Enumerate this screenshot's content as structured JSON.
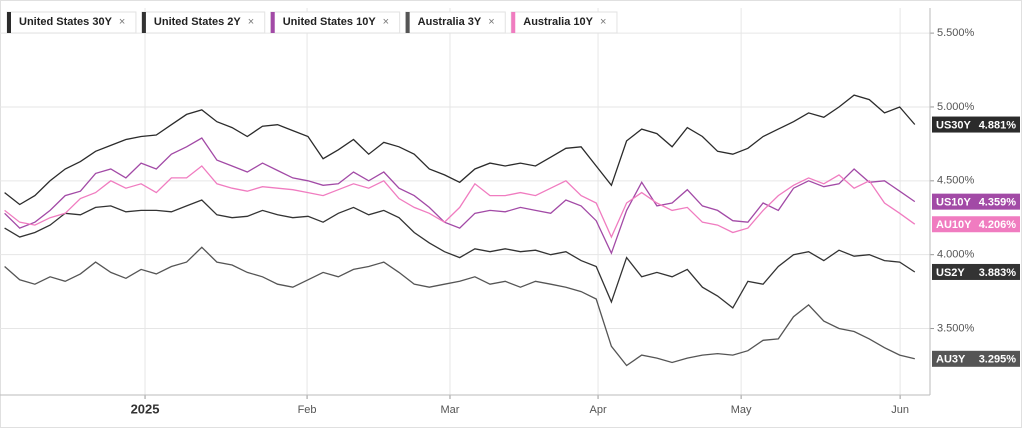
{
  "chart_data": {
    "type": "line",
    "x": [
      0,
      1,
      2,
      3,
      4,
      5,
      6,
      7,
      8,
      9,
      10,
      11,
      12,
      13,
      14,
      15,
      16,
      17,
      18,
      19,
      20,
      21,
      22,
      23,
      24,
      25,
      26,
      27,
      28,
      29,
      30,
      31,
      32,
      33,
      34,
      35,
      36,
      37,
      38,
      39,
      40,
      41,
      42,
      43,
      44,
      45,
      46,
      47,
      48,
      49,
      50,
      51,
      52,
      53,
      54,
      55,
      56,
      57,
      58,
      59,
      60
    ],
    "xlim": [
      -0.3,
      61
    ],
    "xticks": [
      {
        "value": 9.26,
        "label": "2025"
      },
      {
        "value": 19.94,
        "label": "Feb"
      },
      {
        "value": 29.36,
        "label": "Mar"
      },
      {
        "value": 39.12,
        "label": "Apr"
      },
      {
        "value": 48.55,
        "label": "May"
      },
      {
        "value": 59.03,
        "label": "Jun"
      }
    ],
    "ylim": [
      3.05,
      5.67
    ],
    "yticks": [
      {
        "value": 3.5,
        "label": "3.500%"
      },
      {
        "value": 4.0,
        "label": "4.000%"
      },
      {
        "value": 4.5,
        "label": "4.500%"
      },
      {
        "value": 5.0,
        "label": "5.000%"
      },
      {
        "value": 5.5,
        "label": "5.500%"
      }
    ],
    "grid": true,
    "legend_close": "×",
    "series": [
      {
        "name": "United States 30Y",
        "short": "US30Y",
        "last_label": "4.881%",
        "color": "#2b2b2b",
        "values": [
          4.42,
          4.34,
          4.4,
          4.5,
          4.58,
          4.63,
          4.7,
          4.74,
          4.78,
          4.8,
          4.81,
          4.88,
          4.95,
          4.98,
          4.9,
          4.86,
          4.8,
          4.87,
          4.88,
          4.84,
          4.8,
          4.65,
          4.71,
          4.78,
          4.68,
          4.76,
          4.73,
          4.68,
          4.58,
          4.54,
          4.49,
          4.58,
          4.62,
          4.6,
          4.62,
          4.6,
          4.66,
          4.72,
          4.73,
          4.6,
          4.47,
          4.77,
          4.85,
          4.82,
          4.73,
          4.86,
          4.8,
          4.7,
          4.68,
          4.72,
          4.8,
          4.85,
          4.9,
          4.96,
          4.93,
          5.0,
          5.08,
          5.05,
          4.96,
          5.0,
          4.881
        ]
      },
      {
        "name": "United States 2Y",
        "short": "US2Y",
        "last_label": "3.883%",
        "color": "#333333",
        "values": [
          4.18,
          4.12,
          4.15,
          4.2,
          4.28,
          4.27,
          4.32,
          4.33,
          4.29,
          4.3,
          4.3,
          4.29,
          4.33,
          4.37,
          4.27,
          4.25,
          4.26,
          4.3,
          4.27,
          4.25,
          4.26,
          4.22,
          4.28,
          4.32,
          4.27,
          4.3,
          4.25,
          4.15,
          4.08,
          4.02,
          3.98,
          4.04,
          4.02,
          4.04,
          4.02,
          4.03,
          4.0,
          4.02,
          3.96,
          3.92,
          3.68,
          3.98,
          3.85,
          3.88,
          3.85,
          3.9,
          3.78,
          3.72,
          3.64,
          3.82,
          3.8,
          3.92,
          4.0,
          4.02,
          3.96,
          4.03,
          3.99,
          4.0,
          3.96,
          3.95,
          3.883
        ]
      },
      {
        "name": "United States 10Y",
        "short": "US10Y",
        "last_label": "4.359%",
        "color": "#a24aa6",
        "values": [
          4.28,
          4.18,
          4.22,
          4.3,
          4.4,
          4.43,
          4.55,
          4.58,
          4.52,
          4.62,
          4.58,
          4.68,
          4.73,
          4.79,
          4.64,
          4.6,
          4.56,
          4.62,
          4.57,
          4.52,
          4.5,
          4.47,
          4.48,
          4.56,
          4.5,
          4.56,
          4.45,
          4.4,
          4.32,
          4.22,
          4.18,
          4.28,
          4.3,
          4.29,
          4.32,
          4.3,
          4.28,
          4.37,
          4.33,
          4.23,
          4.01,
          4.3,
          4.49,
          4.33,
          4.35,
          4.44,
          4.33,
          4.3,
          4.23,
          4.22,
          4.35,
          4.3,
          4.45,
          4.5,
          4.46,
          4.48,
          4.58,
          4.49,
          4.5,
          4.43,
          4.359
        ]
      },
      {
        "name": "Australia 3Y",
        "short": "AU3Y",
        "last_label": "3.295%",
        "color": "#555555",
        "values": [
          3.92,
          3.83,
          3.8,
          3.85,
          3.82,
          3.87,
          3.95,
          3.88,
          3.84,
          3.9,
          3.87,
          3.92,
          3.95,
          4.05,
          3.95,
          3.93,
          3.88,
          3.85,
          3.8,
          3.78,
          3.83,
          3.88,
          3.85,
          3.9,
          3.92,
          3.95,
          3.88,
          3.8,
          3.78,
          3.8,
          3.82,
          3.85,
          3.8,
          3.82,
          3.78,
          3.82,
          3.8,
          3.78,
          3.75,
          3.7,
          3.38,
          3.25,
          3.32,
          3.3,
          3.27,
          3.3,
          3.32,
          3.33,
          3.32,
          3.35,
          3.42,
          3.43,
          3.58,
          3.66,
          3.55,
          3.5,
          3.48,
          3.43,
          3.37,
          3.32,
          3.295
        ]
      },
      {
        "name": "Australia 10Y",
        "short": "AU10Y",
        "last_label": "4.206%",
        "color": "#f07cc0",
        "values": [
          4.3,
          4.22,
          4.2,
          4.25,
          4.28,
          4.38,
          4.42,
          4.5,
          4.45,
          4.48,
          4.42,
          4.52,
          4.52,
          4.6,
          4.48,
          4.45,
          4.43,
          4.46,
          4.45,
          4.44,
          4.42,
          4.4,
          4.44,
          4.48,
          4.45,
          4.5,
          4.38,
          4.32,
          4.28,
          4.22,
          4.32,
          4.48,
          4.4,
          4.4,
          4.42,
          4.4,
          4.45,
          4.5,
          4.4,
          4.35,
          4.12,
          4.35,
          4.42,
          4.35,
          4.3,
          4.32,
          4.22,
          4.2,
          4.15,
          4.18,
          4.3,
          4.4,
          4.47,
          4.52,
          4.48,
          4.54,
          4.45,
          4.5,
          4.35,
          4.28,
          4.206
        ]
      }
    ]
  }
}
